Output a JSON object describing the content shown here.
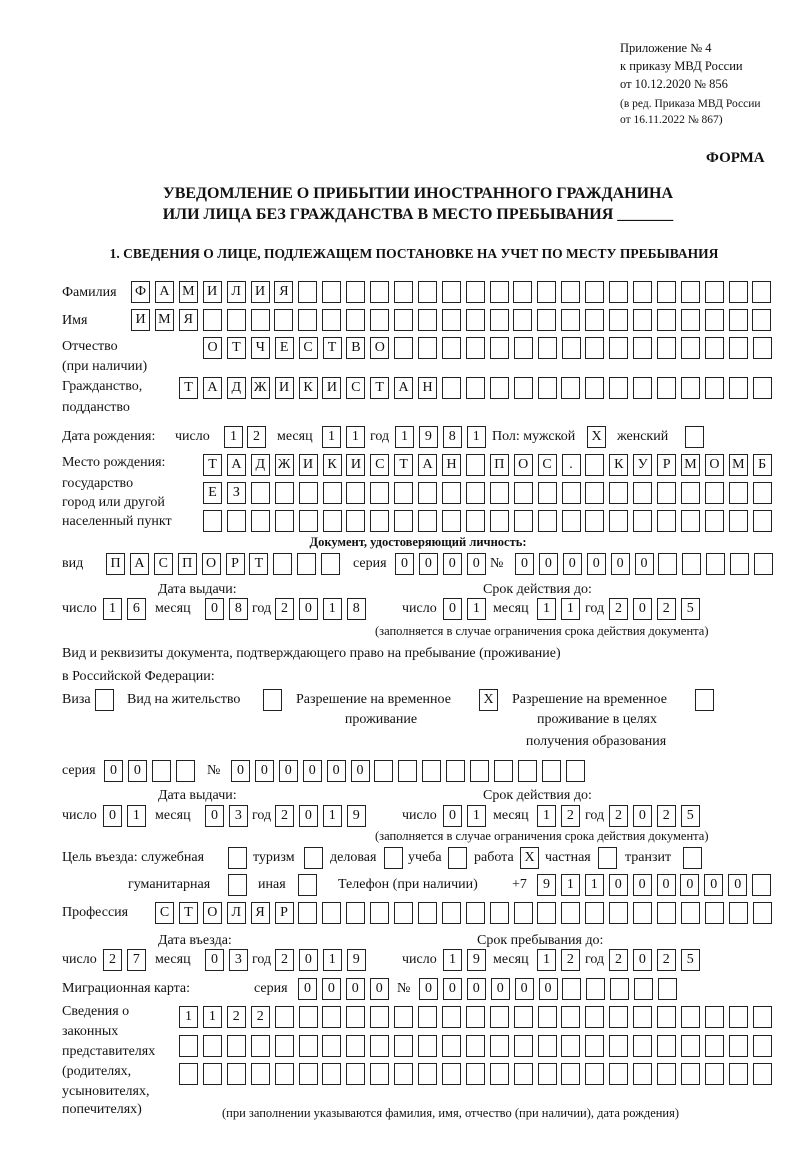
{
  "header": {
    "appendix": "Приложение № 4",
    "order": "к приказу МВД России",
    "order_date": "от 10.12.2020 № 856",
    "revision": "(в ред. Приказа МВД России",
    "revision_date": "от 16.11.2022 № 867)"
  },
  "form_label": "ФОРМА",
  "title": {
    "line1": "УВЕДОМЛЕНИЕ О ПРИБЫТИИ ИНОСТРАННОГО ГРАЖДАНИНА",
    "line2": "ИЛИ ЛИЦА БЕЗ ГРАЖДАНСТВА В МЕСТО ПРЕБЫВАНИЯ _______"
  },
  "section1": {
    "heading": "1. СВЕДЕНИЯ О ЛИЦЕ, ПОДЛЕЖАЩЕМ ПОСТАНОВКЕ НА УЧЕТ ПО МЕСТУ ПРЕБЫВАНИЯ"
  },
  "person": {
    "surname": {
      "label": "Фамилия",
      "cells": [
        "Ф",
        "А",
        "М",
        "И",
        "Л",
        "И",
        "Я",
        "",
        "",
        "",
        "",
        "",
        "",
        "",
        "",
        "",
        "",
        "",
        "",
        "",
        "",
        "",
        "",
        "",
        "",
        "",
        ""
      ]
    },
    "name": {
      "label": "Имя",
      "cells": [
        "И",
        "М",
        "Я",
        "",
        "",
        "",
        "",
        "",
        "",
        "",
        "",
        "",
        "",
        "",
        "",
        "",
        "",
        "",
        "",
        "",
        "",
        "",
        "",
        "",
        "",
        "",
        ""
      ]
    },
    "patronymic": {
      "label": "Отчество",
      "label2": "(при наличии)",
      "cells": [
        "О",
        "Т",
        "Ч",
        "Е",
        "С",
        "Т",
        "В",
        "О",
        "",
        "",
        "",
        "",
        "",
        "",
        "",
        "",
        "",
        "",
        "",
        "",
        "",
        "",
        "",
        ""
      ]
    },
    "citizenship": {
      "label": "Гражданство,",
      "label2": "подданство",
      "cells": [
        "Т",
        "А",
        "Д",
        "Ж",
        "И",
        "К",
        "И",
        "С",
        "Т",
        "А",
        "Н",
        "",
        "",
        "",
        "",
        "",
        "",
        "",
        "",
        "",
        "",
        "",
        "",
        "",
        ""
      ]
    },
    "birth_date": {
      "label": "Дата рождения:",
      "day_label": "число",
      "day": [
        "1",
        "2"
      ],
      "month_label": "месяц",
      "month": [
        "1",
        "1"
      ],
      "year_label": "год",
      "year": [
        "1",
        "9",
        "8",
        "1"
      ],
      "sex_label": "Пол: мужской",
      "male": "X",
      "female_label": "женский",
      "female": ""
    },
    "birth_place": {
      "label1": "Место рождения:",
      "label2": "государство",
      "label3": "город или другой",
      "label4": "населенный пункт",
      "row1": [
        "Т",
        "А",
        "Д",
        "Ж",
        "И",
        "К",
        "И",
        "С",
        "Т",
        "А",
        "Н",
        "",
        "П",
        "О",
        "С",
        ".",
        "",
        "К",
        "У",
        "Р",
        "М",
        "О",
        "М",
        "Б"
      ],
      "row2": [
        "Е",
        "З",
        "",
        "",
        "",
        "",
        "",
        "",
        "",
        "",
        "",
        "",
        "",
        "",
        "",
        "",
        "",
        "",
        "",
        "",
        "",
        "",
        "",
        ""
      ],
      "row3": [
        "",
        "",
        "",
        "",
        "",
        "",
        "",
        "",
        "",
        "",
        "",
        "",
        "",
        "",
        "",
        "",
        "",
        "",
        "",
        "",
        "",
        "",
        "",
        ""
      ]
    }
  },
  "identity_doc": {
    "heading": "Документ, удостоверяющий личность:",
    "type_label": "вид",
    "type": [
      "П",
      "А",
      "С",
      "П",
      "О",
      "Р",
      "Т",
      "",
      "",
      ""
    ],
    "series_label": "серия",
    "series": [
      "0",
      "0",
      "0",
      "0"
    ],
    "number_label": "№",
    "number": [
      "0",
      "0",
      "0",
      "0",
      "0",
      "0",
      "",
      "",
      "",
      "",
      ""
    ],
    "issue_label": "Дата выдачи:",
    "valid_label": "Срок действия до:",
    "day_label": "число",
    "month_label": "месяц",
    "year_label": "год",
    "issue": {
      "day": [
        "1",
        "6"
      ],
      "month": [
        "0",
        "8"
      ],
      "year": [
        "2",
        "0",
        "1",
        "8"
      ]
    },
    "valid": {
      "day": [
        "0",
        "1"
      ],
      "month": [
        "1",
        "1"
      ],
      "year": [
        "2",
        "0",
        "2",
        "5"
      ]
    },
    "note": "(заполняется в случае ограничения срока действия документа)"
  },
  "residence_doc": {
    "heading1": "Вид и реквизиты документа, подтверждающего право на пребывание (проживание)",
    "heading2": "в Российской Федерации:",
    "visa_label": "Виза",
    "visa": "",
    "residence_permit_label": "Вид на жительство",
    "residence_permit": "",
    "temp_permit_label1": "Разрешение на временное",
    "temp_permit_label2": "проживание",
    "temp_permit": "X",
    "edu_permit_label1": "Разрешение на временное",
    "edu_permit_label2": "проживание в целях",
    "edu_permit_label3": "получения образования",
    "edu_permit": "",
    "series_label": "серия",
    "series": [
      "0",
      "0",
      "",
      ""
    ],
    "number_label": "№",
    "number": [
      "0",
      "0",
      "0",
      "0",
      "0",
      "0",
      "",
      "",
      "",
      "",
      "",
      "",
      "",
      "",
      ""
    ],
    "issue_label": "Дата выдачи:",
    "valid_label": "Срок действия до:",
    "day_label": "число",
    "month_label": "месяц",
    "year_label": "год",
    "issue": {
      "day": [
        "0",
        "1"
      ],
      "month": [
        "0",
        "3"
      ],
      "year": [
        "2",
        "0",
        "1",
        "9"
      ]
    },
    "valid": {
      "day": [
        "0",
        "1"
      ],
      "month": [
        "1",
        "2"
      ],
      "year": [
        "2",
        "0",
        "2",
        "5"
      ]
    },
    "note": "(заполняется в случае ограничения срока действия документа)"
  },
  "purpose": {
    "label": "Цель въезда: служебная",
    "official": "",
    "tourism_label": "туризм",
    "tourism": "",
    "business_label": "деловая",
    "business": "",
    "study_label": "учеба",
    "study": "",
    "work_label": "работа",
    "work": "X",
    "private_label": "частная",
    "private": "",
    "transit_label": "транзит",
    "transit": "",
    "humanitarian_label": "гуманитарная",
    "humanitarian": "",
    "other_label": "иная",
    "other": ""
  },
  "phone": {
    "label": "Телефон (при наличии)",
    "prefix": "+7",
    "cells": [
      "9",
      "1",
      "1",
      "0",
      "0",
      "0",
      "0",
      "0",
      "0",
      ""
    ]
  },
  "profession": {
    "label": "Профессия",
    "cells": [
      "С",
      "Т",
      "О",
      "Л",
      "Я",
      "Р",
      "",
      "",
      "",
      "",
      "",
      "",
      "",
      "",
      "",
      "",
      "",
      "",
      "",
      "",
      "",
      "",
      "",
      "",
      "",
      ""
    ]
  },
  "entry": {
    "entry_label": "Дата въезда:",
    "stay_label": "Срок пребывания до:",
    "day_label": "число",
    "month_label": "месяц",
    "year_label": "год",
    "entry_date": {
      "day": [
        "2",
        "7"
      ],
      "month": [
        "0",
        "3"
      ],
      "year": [
        "2",
        "0",
        "1",
        "9"
      ]
    },
    "stay_until": {
      "day": [
        "1",
        "9"
      ],
      "month": [
        "1",
        "2"
      ],
      "year": [
        "2",
        "0",
        "2",
        "5"
      ]
    }
  },
  "migration_card": {
    "label": "Миграционная карта:",
    "series_label": "серия",
    "series": [
      "0",
      "0",
      "0",
      "0"
    ],
    "number_label": "№",
    "number": [
      "0",
      "0",
      "0",
      "0",
      "0",
      "0",
      "",
      "",
      "",
      "",
      ""
    ]
  },
  "representatives": {
    "label1": "Сведения о",
    "label2": "законных",
    "label3": "представителях",
    "label4": "(родителях,",
    "label5": "усыновителях,",
    "label6": "попечителях)",
    "row1": [
      "1",
      "1",
      "2",
      "2",
      "",
      "",
      "",
      "",
      "",
      "",
      "",
      "",
      "",
      "",
      "",
      "",
      "",
      "",
      "",
      "",
      "",
      "",
      "",
      "",
      ""
    ],
    "row2": [
      "",
      "",
      "",
      "",
      "",
      "",
      "",
      "",
      "",
      "",
      "",
      "",
      "",
      "",
      "",
      "",
      "",
      "",
      "",
      "",
      "",
      "",
      "",
      "",
      ""
    ],
    "row3": [
      "",
      "",
      "",
      "",
      "",
      "",
      "",
      "",
      "",
      "",
      "",
      "",
      "",
      "",
      "",
      "",
      "",
      "",
      "",
      "",
      "",
      "",
      "",
      "",
      ""
    ],
    "note": "(при заполнении указываются фамилия, имя, отчество (при наличии), дата рождения)"
  }
}
